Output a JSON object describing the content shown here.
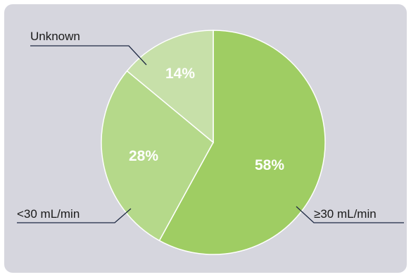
{
  "chart_data": {
    "type": "pie",
    "title": "",
    "slices": [
      {
        "label": "≥30 mL/min",
        "value": 58,
        "value_label": "58%",
        "color": "#9fcd63"
      },
      {
        "label": "<30 mL/min",
        "value": 28,
        "value_label": "28%",
        "color": "#b5d98a"
      },
      {
        "label": "Unknown",
        "value": 14,
        "value_label": "14%",
        "color": "#c7e0a9"
      }
    ],
    "start_angle_deg": 0,
    "direction": "clockwise",
    "background_color": "#d6d6de"
  }
}
